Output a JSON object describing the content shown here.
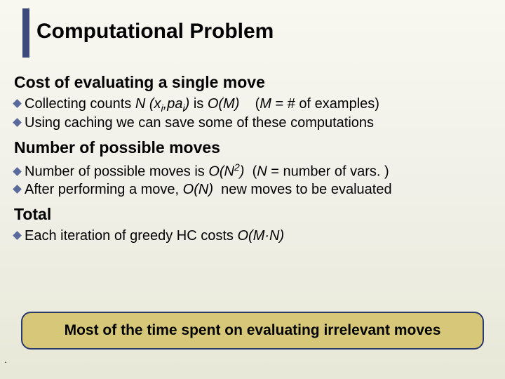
{
  "title": "Computational Problem",
  "sections": {
    "s1": {
      "heading": "Cost of evaluating a single move",
      "b1": {
        "pre": "Collecting counts ",
        "expr_n": "N (x",
        "sub_i": "i",
        "comma": ",",
        "pa": "pa",
        "sub_i2": "i",
        "close": ")",
        "is": " is ",
        "om": "O(M)",
        "spacer": "    (",
        "mvar": "M",
        "post": " = # of examples)"
      },
      "b2": "Using caching we can save some of these computations"
    },
    "s2": {
      "heading": "Number of possible moves",
      "b1": {
        "pre": "Number of possible moves is ",
        "on": "O(N",
        "sup2": "2",
        "close": ")",
        "spacer": "  (",
        "nvar": "N",
        "post": " = number of vars. )"
      },
      "b2": {
        "pre": "After performing a move, ",
        "on": "O(N)",
        "post": "  new moves to be evaluated"
      }
    },
    "s3": {
      "heading": "Total",
      "b1": {
        "pre": "Each iteration of greedy HC costs ",
        "omn": "O(M·N)"
      }
    }
  },
  "callout": "Most of the time spent on evaluating irrelevant moves",
  "colors": {
    "title_bar": "#3b4a7a",
    "diamond": "#5a6a9a",
    "callout_bg": "#d6c878",
    "callout_border": "#2a3a6a",
    "bg_top": "#f8f8f0",
    "bg_bottom": "#e8e8d8"
  },
  "fonts": {
    "title_size": 30,
    "heading_size": 23,
    "body_size": 20,
    "callout_size": 21
  }
}
